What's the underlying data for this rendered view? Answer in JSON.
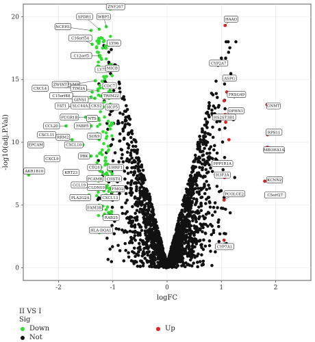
{
  "chart_data": {
    "type": "scatter",
    "xlabel": "logFC",
    "ylabel": "-log10(adj.P.Val)",
    "xlim": [
      -2.65,
      2.65
    ],
    "ylim": [
      -1,
      21
    ],
    "x_ticks": [
      -2,
      -1,
      0,
      1,
      2
    ],
    "y_ticks": [
      0,
      5,
      10,
      15,
      20
    ],
    "grid": true,
    "legend_placement": "bottom",
    "legend": {
      "title": "II VS I",
      "subtitle": "Sig",
      "entries": [
        {
          "name": "Down",
          "color": "#33dd33"
        },
        {
          "name": "Up",
          "color": "#dd2222"
        },
        {
          "name": "Not",
          "color": "#111111"
        }
      ]
    },
    "background_cloud": {
      "series": "Not",
      "count": 2000,
      "x_range": [
        -1.3,
        1.3
      ]
    },
    "down_cloud": {
      "series": "Down",
      "count": 130,
      "x_range": [
        -1.3,
        -1.0
      ],
      "y_range": [
        4,
        18.5
      ]
    },
    "up_points": [
      {
        "x": 1.07,
        "y": 19.3
      },
      {
        "x": 1.05,
        "y": 13.3
      },
      {
        "x": 1.08,
        "y": 11.6
      },
      {
        "x": 1.07,
        "y": 12.2
      },
      {
        "x": 1.14,
        "y": 10.2
      },
      {
        "x": 1.84,
        "y": 13.0
      },
      {
        "x": 1.85,
        "y": 10.6
      },
      {
        "x": 1.85,
        "y": 9.6
      },
      {
        "x": 1.06,
        "y": 7.2
      },
      {
        "x": 1.8,
        "y": 6.9
      },
      {
        "x": 1.84,
        "y": 5.8
      },
      {
        "x": 1.05,
        "y": 5.4
      },
      {
        "x": 1.05,
        "y": 2.2
      },
      {
        "x": 1.1,
        "y": 14.0
      },
      {
        "x": 1.08,
        "y": 8.3
      }
    ],
    "labeled_down": [
      {
        "label": "ZNF267",
        "x": -1.05,
        "y": 20.6,
        "lx": -0.95,
        "ly": 20.8
      },
      {
        "label": "SPDR1",
        "x": -1.25,
        "y": 19.0,
        "lx": -1.52,
        "ly": 20.0
      },
      {
        "label": "WBP5",
        "x": -1.12,
        "y": 19.2,
        "lx": -1.17,
        "ly": 20.0
      },
      {
        "label": "NCEH1",
        "x": -1.4,
        "y": 18.9,
        "lx": -1.92,
        "ly": 19.2
      },
      {
        "label": "C16orf54",
        "x": -1.38,
        "y": 17.8,
        "lx": -1.6,
        "ly": 18.3
      },
      {
        "label": "LY96",
        "x": -1.07,
        "y": 17.9,
        "lx": -0.98,
        "ly": 17.9
      },
      {
        "label": "C12orf5",
        "x": -1.25,
        "y": 16.9,
        "lx": -1.58,
        "ly": 16.9
      },
      {
        "label": "LY75",
        "x": -1.1,
        "y": 15.8,
        "lx": -1.2,
        "ly": 15.8
      },
      {
        "label": "MICB",
        "x": -1.03,
        "y": 16.2,
        "lx": -1.01,
        "ly": 15.9
      },
      {
        "label": "GPNMB",
        "x": -1.32,
        "y": 14.9,
        "lx": -1.76,
        "ly": 14.6
      },
      {
        "label": "ZWINT",
        "x": -1.38,
        "y": 14.0,
        "lx": -1.97,
        "ly": 14.6
      },
      {
        "label": "TIM2A",
        "x": -1.27,
        "y": 14.1,
        "lx": -1.63,
        "ly": 14.3
      },
      {
        "label": "CDC7",
        "x": -1.05,
        "y": 14.1,
        "lx": -1.06,
        "ly": 14.5
      },
      {
        "label": "CXCL4",
        "x": -2.45,
        "y": 14.2,
        "lx": -2.34,
        "ly": 14.3
      },
      {
        "label": "C15orf48",
        "x": -1.4,
        "y": 13.6,
        "lx": -1.95,
        "ly": 13.7
      },
      {
        "label": "GINS1",
        "x": -1.33,
        "y": 13.5,
        "lx": -1.6,
        "ly": 13.4
      },
      {
        "label": "TRIM22",
        "x": -1.07,
        "y": 13.5,
        "lx": -1.03,
        "ly": 13.7
      },
      {
        "label": "FAT1",
        "x": -1.42,
        "y": 12.8,
        "lx": -1.94,
        "ly": 12.9
      },
      {
        "label": "SLC44A3",
        "x": -1.27,
        "y": 12.8,
        "lx": -1.58,
        "ly": 12.9
      },
      {
        "label": "CKS2",
        "x": -1.18,
        "y": 12.8,
        "lx": -1.3,
        "ly": 12.9
      },
      {
        "label": "HCP5",
        "x": -1.04,
        "y": 12.8,
        "lx": -1.01,
        "ly": 12.8
      },
      {
        "label": "FCGR1B",
        "x": -1.5,
        "y": 12.0,
        "lx": -1.8,
        "ly": 12.0
      },
      {
        "label": "NTS",
        "x": -1.26,
        "y": 11.9,
        "lx": -1.38,
        "ly": 11.9
      },
      {
        "label": "CCL20",
        "x": -1.86,
        "y": 11.3,
        "lx": -2.13,
        "ly": 11.3
      },
      {
        "label": "FABP5",
        "x": -1.4,
        "y": 11.3,
        "lx": -1.56,
        "ly": 11.3
      },
      {
        "label": "CXCL11",
        "x": -2.17,
        "y": 10.6,
        "lx": -2.22,
        "ly": 10.6
      },
      {
        "label": "SOX9",
        "x": -1.29,
        "y": 10.6,
        "lx": -1.34,
        "ly": 10.5
      },
      {
        "label": "RRM2",
        "x": -1.75,
        "y": 10.2,
        "lx": -1.92,
        "ly": 10.4
      },
      {
        "label": "EPCAM",
        "x": -2.47,
        "y": 9.8,
        "lx": -2.42,
        "ly": 9.8
      },
      {
        "label": "CXCL10",
        "x": -1.55,
        "y": 9.8,
        "lx": -1.72,
        "ly": 9.8
      },
      {
        "label": "CXCL9",
        "x": -2.05,
        "y": 8.7,
        "lx": -2.12,
        "ly": 8.7
      },
      {
        "label": "PBK",
        "x": -1.4,
        "y": 8.9,
        "lx": -1.53,
        "ly": 8.9
      },
      {
        "label": "CD24",
        "x": -1.22,
        "y": 8.0,
        "lx": -1.34,
        "ly": 8.0
      },
      {
        "label": "UHRF1",
        "x": -1.04,
        "y": 8.0,
        "lx": -0.95,
        "ly": 8.0
      },
      {
        "label": "AKR1B10",
        "x": -2.55,
        "y": 7.4,
        "lx": -2.45,
        "ly": 7.7
      },
      {
        "label": "KRT23",
        "x": -1.8,
        "y": 7.5,
        "lx": -1.77,
        "ly": 7.6
      },
      {
        "label": "PCAMR",
        "x": -1.38,
        "y": 7.1,
        "lx": -1.33,
        "ly": 7.1
      },
      {
        "label": "CHST4",
        "x": -1.05,
        "y": 7.1,
        "lx": -0.99,
        "ly": 7.1
      },
      {
        "label": "CCL19",
        "x": -1.6,
        "y": 6.6,
        "lx": -1.62,
        "ly": 6.6
      },
      {
        "label": "CLDN10",
        "x": -1.38,
        "y": 6.4,
        "lx": -1.3,
        "ly": 6.4
      },
      {
        "label": "FMO2",
        "x": -1.03,
        "y": 6.3,
        "lx": -0.91,
        "ly": 6.3
      },
      {
        "label": "PLA2G2A",
        "x": -1.44,
        "y": 5.8,
        "lx": -1.6,
        "ly": 5.6
      },
      {
        "label": "CXCL13",
        "x": -1.12,
        "y": 5.8,
        "lx": -1.05,
        "ly": 5.6
      },
      {
        "label": "FAM3B",
        "x": -1.4,
        "y": 4.8,
        "lx": -1.34,
        "ly": 4.8
      },
      {
        "label": "RAB25",
        "x": -1.08,
        "y": 4.4,
        "lx": -1.03,
        "ly": 4.0
      },
      {
        "label": "HLA-DQA1",
        "x": -1.25,
        "y": 2.8,
        "lx": -1.22,
        "ly": 3.0
      }
    ],
    "labeled_up": [
      {
        "label": "HAAO",
        "x": 1.07,
        "y": 19.3,
        "lx": 1.18,
        "ly": 19.8
      },
      {
        "label": "CYP2A7",
        "x": 0.9,
        "y": 16.1,
        "lx": 0.95,
        "ly": 16.3
      },
      {
        "label": "ASPG",
        "x": 1.05,
        "y": 15.0,
        "lx": 1.15,
        "ly": 15.1
      },
      {
        "label": "FKSG49",
        "x": 1.1,
        "y": 13.8,
        "lx": 1.28,
        "ly": 13.8
      },
      {
        "label": "GNMT",
        "x": 1.84,
        "y": 13.0,
        "lx": 1.96,
        "ly": 12.9
      },
      {
        "label": "OPHN1",
        "x": 1.08,
        "y": 12.2,
        "lx": 1.27,
        "ly": 12.5
      },
      {
        "label": "HS2ST3B1",
        "x": 0.95,
        "y": 12.3,
        "lx": 1.05,
        "ly": 12.0
      },
      {
        "label": "RPS11",
        "x": 1.85,
        "y": 10.6,
        "lx": 1.97,
        "ly": 10.8
      },
      {
        "label": "MBOHA1A",
        "x": 1.8,
        "y": 9.4,
        "lx": 1.97,
        "ly": 9.4
      },
      {
        "label": "PPP1R1A",
        "x": 0.95,
        "y": 8.3,
        "lx": 1.02,
        "ly": 8.3
      },
      {
        "label": "KCNN2",
        "x": 1.8,
        "y": 6.9,
        "lx": 1.98,
        "ly": 7.0
      },
      {
        "label": "H3F3A",
        "x": 0.85,
        "y": 7.4,
        "lx": 1.02,
        "ly": 7.4
      },
      {
        "label": "PCOLCE2",
        "x": 1.05,
        "y": 5.4,
        "lx": 1.24,
        "ly": 5.9
      },
      {
        "label": "C5orf27",
        "x": 1.84,
        "y": 5.8,
        "lx": 1.99,
        "ly": 5.8
      },
      {
        "label": "CYP7A1",
        "x": 1.05,
        "y": 2.2,
        "lx": 1.06,
        "ly": 1.7
      }
    ]
  }
}
